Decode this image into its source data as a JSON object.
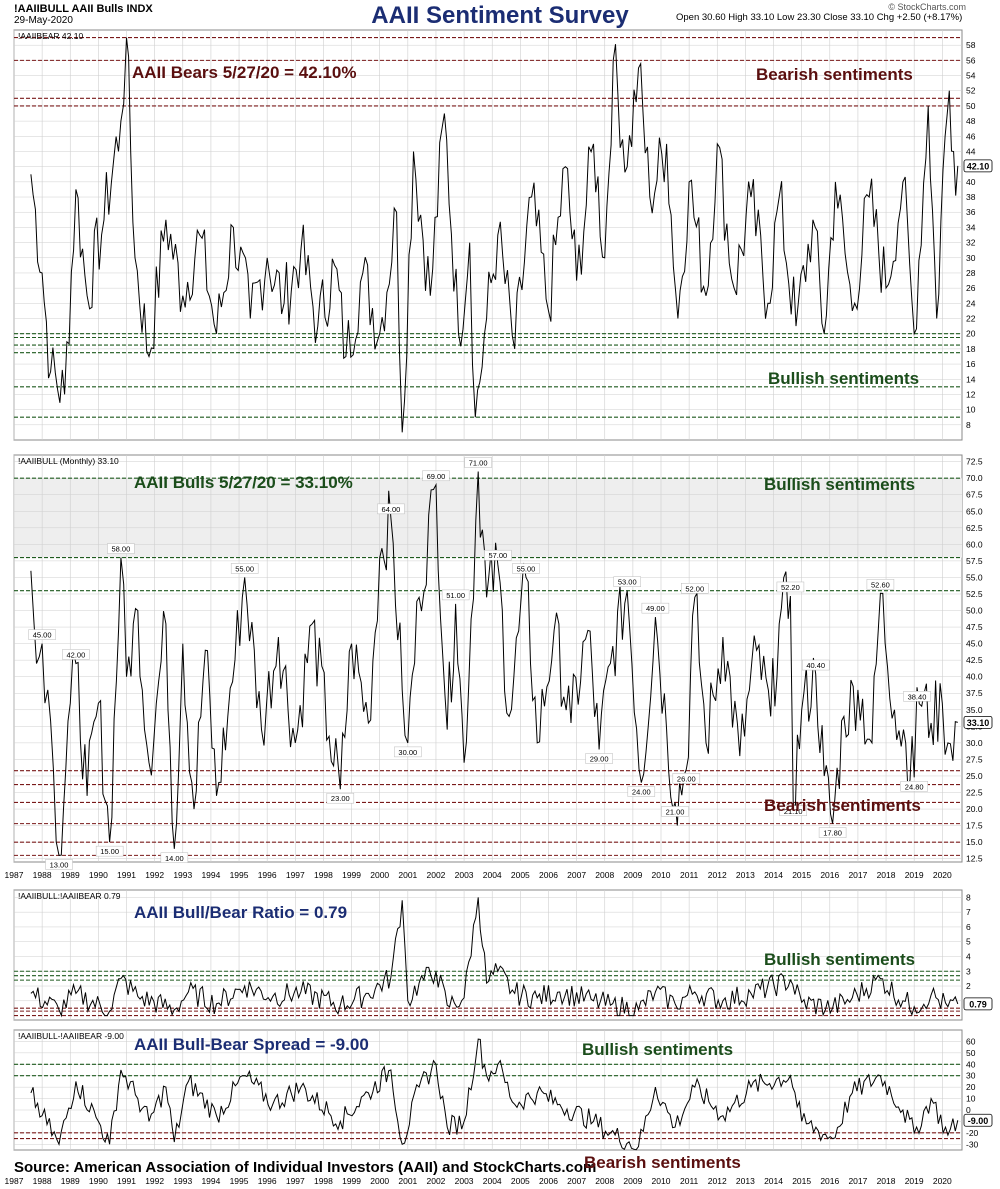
{
  "header": {
    "symbol": "!AAIIBULL AAII Bulls INDX",
    "date": "29-May-2020",
    "title": "AAII Sentiment Survey",
    "quote": "Open 30.60  High 33.10  Low 23.30  Close 33.10  Chg +2.50 (+8.17%)",
    "brand": "© StockCharts.com"
  },
  "footer": {
    "source": "Source: American Association of Individual Investors (AAII) and StockCharts.com"
  },
  "colors": {
    "line": "#000000",
    "bearish_text": "#5a0f0f",
    "bullish_text": "#1b4d1b",
    "title": "#1b2d73",
    "bear_band": "#7a1a1a",
    "bull_band": "#1e5a1e",
    "grid": "#cfcfcf"
  },
  "x_axis": {
    "years": [
      "1987",
      "1988",
      "1989",
      "1990",
      "1991",
      "1992",
      "1993",
      "1994",
      "1995",
      "1996",
      "1997",
      "1998",
      "1999",
      "2000",
      "2001",
      "2002",
      "2003",
      "2004",
      "2005",
      "2006",
      "2007",
      "2008",
      "2009",
      "2010",
      "2011",
      "2012",
      "2013",
      "2014",
      "2015",
      "2016",
      "2017",
      "2018",
      "2019",
      "2020"
    ],
    "start": 1987.0,
    "end": 2020.7
  },
  "chart_data": [
    {
      "type": "line",
      "id": "bears",
      "label": "!AAIIBEAR 42.10",
      "annotation": "AAII Bears 5/27/20 = 42.10%",
      "current_value": "42.10",
      "ylim": [
        6,
        60
      ],
      "y_ticks": [
        8,
        10,
        12,
        14,
        16,
        18,
        20,
        22,
        24,
        26,
        28,
        30,
        32,
        34,
        36,
        38,
        40,
        42,
        44,
        46,
        48,
        50,
        52,
        54,
        56,
        58
      ],
      "bear_lines": [
        50,
        51,
        56,
        59
      ],
      "bull_lines": [
        9,
        13,
        17.5,
        18.5,
        19.5,
        20
      ],
      "zone_labels": {
        "top": "Bearish sentiments",
        "bottom": "Bullish sentiments"
      },
      "keypoints": [
        [
          1987.6,
          41
        ],
        [
          1988.0,
          28
        ],
        [
          1988.3,
          15
        ],
        [
          1988.8,
          12
        ],
        [
          1989.2,
          39
        ],
        [
          1989.6,
          25
        ],
        [
          1990.2,
          35
        ],
        [
          1990.8,
          48
        ],
        [
          1991.0,
          59
        ],
        [
          1991.3,
          30
        ],
        [
          1991.8,
          17
        ],
        [
          1992.4,
          35
        ],
        [
          1993.0,
          25
        ],
        [
          1993.6,
          33
        ],
        [
          1994.2,
          20
        ],
        [
          1994.8,
          34
        ],
        [
          1995.4,
          22
        ],
        [
          1996.0,
          30
        ],
        [
          1996.6,
          24
        ],
        [
          1997.2,
          31
        ],
        [
          1997.8,
          21
        ],
        [
          1998.4,
          29
        ],
        [
          1998.8,
          17
        ],
        [
          1999.4,
          28
        ],
        [
          2000.0,
          20
        ],
        [
          2000.6,
          36
        ],
        [
          2000.8,
          7
        ],
        [
          2001.2,
          44
        ],
        [
          2001.8,
          25
        ],
        [
          2002.3,
          49
        ],
        [
          2002.8,
          20
        ],
        [
          2003.2,
          32
        ],
        [
          2003.4,
          9
        ],
        [
          2003.8,
          22
        ],
        [
          2004.2,
          33
        ],
        [
          2004.8,
          18
        ],
        [
          2005.4,
          38
        ],
        [
          2006.0,
          23
        ],
        [
          2006.6,
          42
        ],
        [
          2007.0,
          27
        ],
        [
          2007.6,
          45
        ],
        [
          2008.0,
          30
        ],
        [
          2008.3,
          56
        ],
        [
          2008.8,
          42
        ],
        [
          2009.2,
          55
        ],
        [
          2009.6,
          38
        ],
        [
          2010.2,
          45
        ],
        [
          2010.6,
          22
        ],
        [
          2011.0,
          40
        ],
        [
          2011.6,
          25
        ],
        [
          2012.0,
          45
        ],
        [
          2012.6,
          26
        ],
        [
          2013.2,
          38
        ],
        [
          2013.8,
          24
        ],
        [
          2014.2,
          38
        ],
        [
          2014.8,
          21
        ],
        [
          2015.4,
          35
        ],
        [
          2015.8,
          20
        ],
        [
          2016.2,
          40
        ],
        [
          2016.8,
          23
        ],
        [
          2017.4,
          38
        ],
        [
          2018.0,
          26
        ],
        [
          2018.6,
          40
        ],
        [
          2019.0,
          20
        ],
        [
          2019.5,
          50
        ],
        [
          2019.8,
          22
        ],
        [
          2020.1,
          46
        ],
        [
          2020.25,
          52
        ],
        [
          2020.4,
          44
        ],
        [
          2020.55,
          42.1
        ]
      ],
      "peaks": []
    },
    {
      "type": "line",
      "id": "bulls",
      "label": "!AAIIBULL (Monthly) 33.10",
      "annotation": "AAII Bulls 5/27/20 =  33.10%",
      "current_value": "33.10",
      "ylim": [
        12,
        73.5
      ],
      "y_ticks": [
        "12.5",
        "15.0",
        "17.5",
        "20.0",
        "22.5",
        "25.0",
        "27.5",
        "30.0",
        "32.5",
        "35.0",
        "37.5",
        "40.0",
        "42.5",
        "45.0",
        "47.5",
        "50.0",
        "52.5",
        "55.0",
        "57.5",
        "60.0",
        "62.5",
        "65.0",
        "67.5",
        "70.0",
        "72.5"
      ],
      "bull_lines": [
        53,
        58,
        70
      ],
      "bear_lines": [
        13,
        15,
        17.8,
        21,
        23.7,
        25.8
      ],
      "zone_labels": {
        "top": "Bullish sentiments",
        "bottom": "Bearish sentiments"
      },
      "peaks": [
        [
          "45.00",
          1988.0,
          45
        ],
        [
          "42.00",
          1989.2,
          42
        ],
        [
          "13.00",
          1988.6,
          13
        ],
        [
          "15.00",
          1990.4,
          15
        ],
        [
          "58.00",
          1990.8,
          58
        ],
        [
          "14.00",
          1992.7,
          14
        ],
        [
          "55.00",
          1995.2,
          55
        ],
        [
          "23.00",
          1998.6,
          23
        ],
        [
          "64.00",
          2000.4,
          64
        ],
        [
          "30.00",
          2001.0,
          30
        ],
        [
          "69.00",
          2002.0,
          69
        ],
        [
          "51.00",
          2002.7,
          51
        ],
        [
          "71.00",
          2003.5,
          71
        ],
        [
          "57.00",
          2004.2,
          57
        ],
        [
          "55.00",
          2005.2,
          55
        ],
        [
          "29.00",
          2007.8,
          29
        ],
        [
          "53.00",
          2008.8,
          53
        ],
        [
          "24.00",
          2009.3,
          24
        ],
        [
          "49.00",
          2009.8,
          49
        ],
        [
          "21.00",
          2010.5,
          21
        ],
        [
          "52.00",
          2011.2,
          52
        ],
        [
          "26.00",
          2010.9,
          26
        ],
        [
          "52.20",
          2014.6,
          52.2
        ],
        [
          "21.10",
          2014.7,
          21.1
        ],
        [
          "40.40",
          2015.5,
          40.4
        ],
        [
          "17.80",
          2016.1,
          17.8
        ],
        [
          "52.60",
          2017.8,
          52.6
        ],
        [
          "38.40",
          2019.1,
          38.4
        ],
        [
          "24.80",
          2019.0,
          24.8
        ]
      ],
      "keypoints": [
        [
          1987.6,
          56
        ],
        [
          1987.8,
          42
        ],
        [
          1988.0,
          45
        ],
        [
          1988.2,
          38
        ],
        [
          1988.4,
          26
        ],
        [
          1988.6,
          13
        ],
        [
          1989.0,
          36
        ],
        [
          1989.2,
          42
        ],
        [
          1989.6,
          22
        ],
        [
          1990.0,
          36
        ],
        [
          1990.4,
          15
        ],
        [
          1990.8,
          58
        ],
        [
          1991.0,
          40
        ],
        [
          1991.4,
          50
        ],
        [
          1991.8,
          27
        ],
        [
          1992.4,
          48
        ],
        [
          1992.7,
          14
        ],
        [
          1993.0,
          45
        ],
        [
          1993.4,
          20
        ],
        [
          1993.8,
          44
        ],
        [
          1994.2,
          22
        ],
        [
          1994.6,
          34
        ],
        [
          1995.2,
          55
        ],
        [
          1995.8,
          32
        ],
        [
          1996.4,
          46
        ],
        [
          1997.0,
          30
        ],
        [
          1997.6,
          48
        ],
        [
          1998.2,
          31
        ],
        [
          1998.6,
          23
        ],
        [
          1999.0,
          45
        ],
        [
          1999.6,
          33
        ],
        [
          2000.0,
          58
        ],
        [
          2000.4,
          64
        ],
        [
          2000.8,
          38
        ],
        [
          2001.0,
          30
        ],
        [
          2001.4,
          52
        ],
        [
          2002.0,
          69
        ],
        [
          2002.4,
          32
        ],
        [
          2002.7,
          51
        ],
        [
          2003.0,
          27
        ],
        [
          2003.5,
          71
        ],
        [
          2003.8,
          52
        ],
        [
          2004.2,
          57
        ],
        [
          2004.6,
          34
        ],
        [
          2005.2,
          55
        ],
        [
          2005.6,
          30
        ],
        [
          2006.2,
          47
        ],
        [
          2006.8,
          33
        ],
        [
          2007.4,
          47
        ],
        [
          2007.8,
          29
        ],
        [
          2008.2,
          42
        ],
        [
          2008.8,
          53
        ],
        [
          2009.3,
          24
        ],
        [
          2009.8,
          49
        ],
        [
          2010.2,
          32
        ],
        [
          2010.5,
          21
        ],
        [
          2010.9,
          26
        ],
        [
          2011.2,
          52
        ],
        [
          2011.6,
          30
        ],
        [
          2012.2,
          46
        ],
        [
          2012.8,
          28
        ],
        [
          2013.4,
          44
        ],
        [
          2013.9,
          34
        ],
        [
          2014.2,
          48
        ],
        [
          2014.6,
          52.2
        ],
        [
          2014.7,
          21.1
        ],
        [
          2015.0,
          35
        ],
        [
          2015.5,
          40.4
        ],
        [
          2015.8,
          25
        ],
        [
          2016.1,
          17.8
        ],
        [
          2016.5,
          34
        ],
        [
          2017.0,
          38
        ],
        [
          2017.5,
          30
        ],
        [
          2017.8,
          52.6
        ],
        [
          2018.3,
          35
        ],
        [
          2018.7,
          30
        ],
        [
          2019.0,
          24.8
        ],
        [
          2019.1,
          38.4
        ],
        [
          2019.6,
          33
        ],
        [
          2020.0,
          36
        ],
        [
          2020.2,
          30
        ],
        [
          2020.55,
          33.1
        ]
      ]
    },
    {
      "type": "line",
      "id": "ratio",
      "label": "!AAIIBULL:!AAIIBEAR 0.79",
      "annotation": "AAII Bull/Bear Ratio = 0.79",
      "current_value": "0.79",
      "ylim": [
        -0.3,
        8.5
      ],
      "y_ticks": [
        1,
        2,
        3,
        4,
        5,
        6,
        7,
        8
      ],
      "bull_lines": [
        2.4,
        2.7,
        3
      ],
      "bear_lines": [
        0,
        0.3,
        0.5
      ],
      "zone_labels": {
        "top": "Bullish sentiments",
        "bottom": "Bearish sentiments"
      },
      "keypoints": [
        [
          1987.6,
          1.5
        ],
        [
          1988.6,
          0.4
        ],
        [
          1989.2,
          1.5
        ],
        [
          1990.4,
          0.3
        ],
        [
          1990.8,
          2.5
        ],
        [
          1991.4,
          1.3
        ],
        [
          1992.7,
          0.4
        ],
        [
          1993.2,
          1.6
        ],
        [
          1994.2,
          0.8
        ],
        [
          1995.2,
          2.0
        ],
        [
          1996.2,
          1.3
        ],
        [
          1997.2,
          1.6
        ],
        [
          1998.6,
          0.7
        ],
        [
          1999.6,
          1.5
        ],
        [
          2000.4,
          2.6
        ],
        [
          2000.8,
          7.8
        ],
        [
          2001.0,
          1.0
        ],
        [
          2001.4,
          2.2
        ],
        [
          2002.0,
          3.0
        ],
        [
          2002.4,
          0.7
        ],
        [
          2003.0,
          1.2
        ],
        [
          2003.5,
          8.0
        ],
        [
          2003.8,
          2.2
        ],
        [
          2004.2,
          3.0
        ],
        [
          2004.8,
          1.5
        ],
        [
          2005.6,
          1.2
        ],
        [
          2006.4,
          1.6
        ],
        [
          2007.6,
          1.0
        ],
        [
          2008.2,
          0.7
        ],
        [
          2009.2,
          0.4
        ],
        [
          2009.8,
          1.6
        ],
        [
          2010.5,
          0.8
        ],
        [
          2011.2,
          1.6
        ],
        [
          2012.2,
          1.0
        ],
        [
          2013.2,
          1.5
        ],
        [
          2014.6,
          2.4
        ],
        [
          2015.0,
          0.9
        ],
        [
          2016.1,
          0.5
        ],
        [
          2016.8,
          1.2
        ],
        [
          2017.8,
          2.5
        ],
        [
          2018.6,
          1.0
        ],
        [
          2019.0,
          0.6
        ],
        [
          2019.6,
          1.4
        ],
        [
          2020.2,
          0.6
        ],
        [
          2020.55,
          0.79
        ]
      ]
    },
    {
      "type": "line",
      "id": "spread",
      "label": "!AAIIBULL-!AAIIBEAR -9.00",
      "annotation": "AAII Bull-Bear Spread = -9.00",
      "current_value": "-9.00",
      "ylim": [
        -35,
        70
      ],
      "y_ticks": [
        -30,
        -20,
        -10,
        0,
        10,
        20,
        30,
        40,
        50,
        60
      ],
      "bull_lines": [
        30,
        40
      ],
      "bear_lines": [
        -20,
        -25
      ],
      "zone_labels": {
        "top": "Bullish sentiments",
        "bottom": "Bearish sentiments"
      },
      "keypoints": [
        [
          1987.6,
          15
        ],
        [
          1988.0,
          -5
        ],
        [
          1988.6,
          -30
        ],
        [
          1989.2,
          25
        ],
        [
          1990.0,
          -10
        ],
        [
          1990.4,
          -30
        ],
        [
          1990.8,
          35
        ],
        [
          1991.4,
          10
        ],
        [
          1991.8,
          -10
        ],
        [
          1992.4,
          20
        ],
        [
          1992.7,
          -28
        ],
        [
          1993.2,
          25
        ],
        [
          1994.2,
          -5
        ],
        [
          1995.2,
          30
        ],
        [
          1996.2,
          5
        ],
        [
          1997.2,
          20
        ],
        [
          1998.6,
          -10
        ],
        [
          1999.6,
          15
        ],
        [
          2000.4,
          35
        ],
        [
          2000.8,
          -30
        ],
        [
          2001.4,
          20
        ],
        [
          2002.0,
          40
        ],
        [
          2002.4,
          -15
        ],
        [
          2003.0,
          -10
        ],
        [
          2003.5,
          62
        ],
        [
          2003.8,
          30
        ],
        [
          2004.2,
          40
        ],
        [
          2004.8,
          5
        ],
        [
          2005.6,
          15
        ],
        [
          2006.4,
          5
        ],
        [
          2007.6,
          -10
        ],
        [
          2008.2,
          -20
        ],
        [
          2009.2,
          -32
        ],
        [
          2009.8,
          20
        ],
        [
          2010.5,
          -15
        ],
        [
          2011.2,
          20
        ],
        [
          2012.2,
          -5
        ],
        [
          2013.2,
          20
        ],
        [
          2014.6,
          30
        ],
        [
          2015.0,
          -10
        ],
        [
          2016.1,
          -25
        ],
        [
          2016.8,
          15
        ],
        [
          2017.8,
          30
        ],
        [
          2018.6,
          0
        ],
        [
          2019.0,
          -20
        ],
        [
          2019.6,
          10
        ],
        [
          2020.2,
          -22
        ],
        [
          2020.55,
          -9
        ]
      ]
    }
  ]
}
